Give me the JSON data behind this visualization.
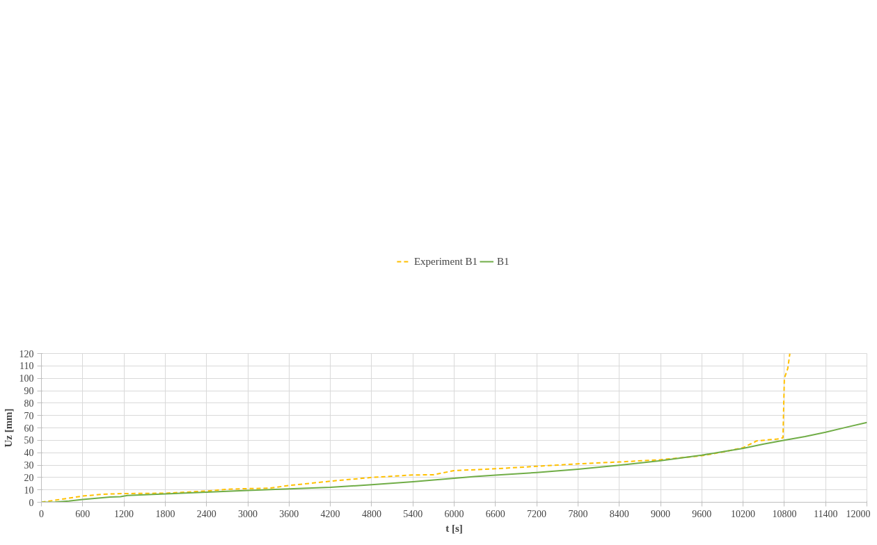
{
  "chart_data": {
    "type": "line",
    "xlabel": "t [s]",
    "ylabel": "Uz [mm]",
    "xlim": [
      0,
      12000
    ],
    "ylim": [
      0,
      120
    ],
    "xticks": [
      0,
      600,
      1200,
      1800,
      2400,
      3000,
      3600,
      4200,
      4800,
      5400,
      6000,
      6600,
      7200,
      7800,
      8400,
      9000,
      9600,
      10200,
      10800,
      11400,
      12000
    ],
    "yticks": [
      0,
      10,
      20,
      30,
      40,
      50,
      60,
      70,
      80,
      90,
      100,
      110,
      120
    ],
    "grid": true,
    "legend": "top",
    "series": [
      {
        "name": "Experiment B1",
        "color": "#ffc000",
        "line_style": "dashed",
        "x": [
          0,
          300,
          600,
          900,
          1200,
          1800,
          2400,
          2700,
          3000,
          3300,
          3600,
          4200,
          4800,
          5400,
          5700,
          6000,
          6600,
          7200,
          7800,
          8400,
          9000,
          9600,
          9900,
          10200,
          10400,
          10700,
          10780,
          10800,
          10850,
          10880
        ],
        "values": [
          0,
          2.5,
          5,
          6.5,
          7,
          7.3,
          9,
          10.5,
          11,
          11.3,
          13.5,
          17,
          20,
          22,
          22.2,
          25.5,
          27,
          29,
          31,
          32.5,
          34.3,
          37.5,
          40.5,
          44,
          49.5,
          51,
          52,
          100,
          108,
          120
        ]
      },
      {
        "name": "B1",
        "color": "#70ad47",
        "line_style": "solid",
        "x": [
          0,
          200,
          400,
          600,
          800,
          1000,
          1150,
          1250,
          1800,
          2400,
          3000,
          3600,
          4200,
          4800,
          5400,
          6000,
          6300,
          6600,
          7200,
          7800,
          8400,
          9000,
          9600,
          10200,
          10500,
          10800,
          11100,
          11400,
          11700,
          12000
        ],
        "values": [
          0,
          0.2,
          1,
          2.3,
          3.2,
          4.2,
          4.5,
          5.5,
          6.7,
          8.2,
          9.6,
          10.8,
          12,
          14.2,
          16.5,
          19.3,
          20.8,
          21.9,
          24,
          26.7,
          29.8,
          33.5,
          38,
          43.5,
          47,
          50,
          53,
          56.5,
          60.5,
          64.3
        ]
      }
    ]
  }
}
